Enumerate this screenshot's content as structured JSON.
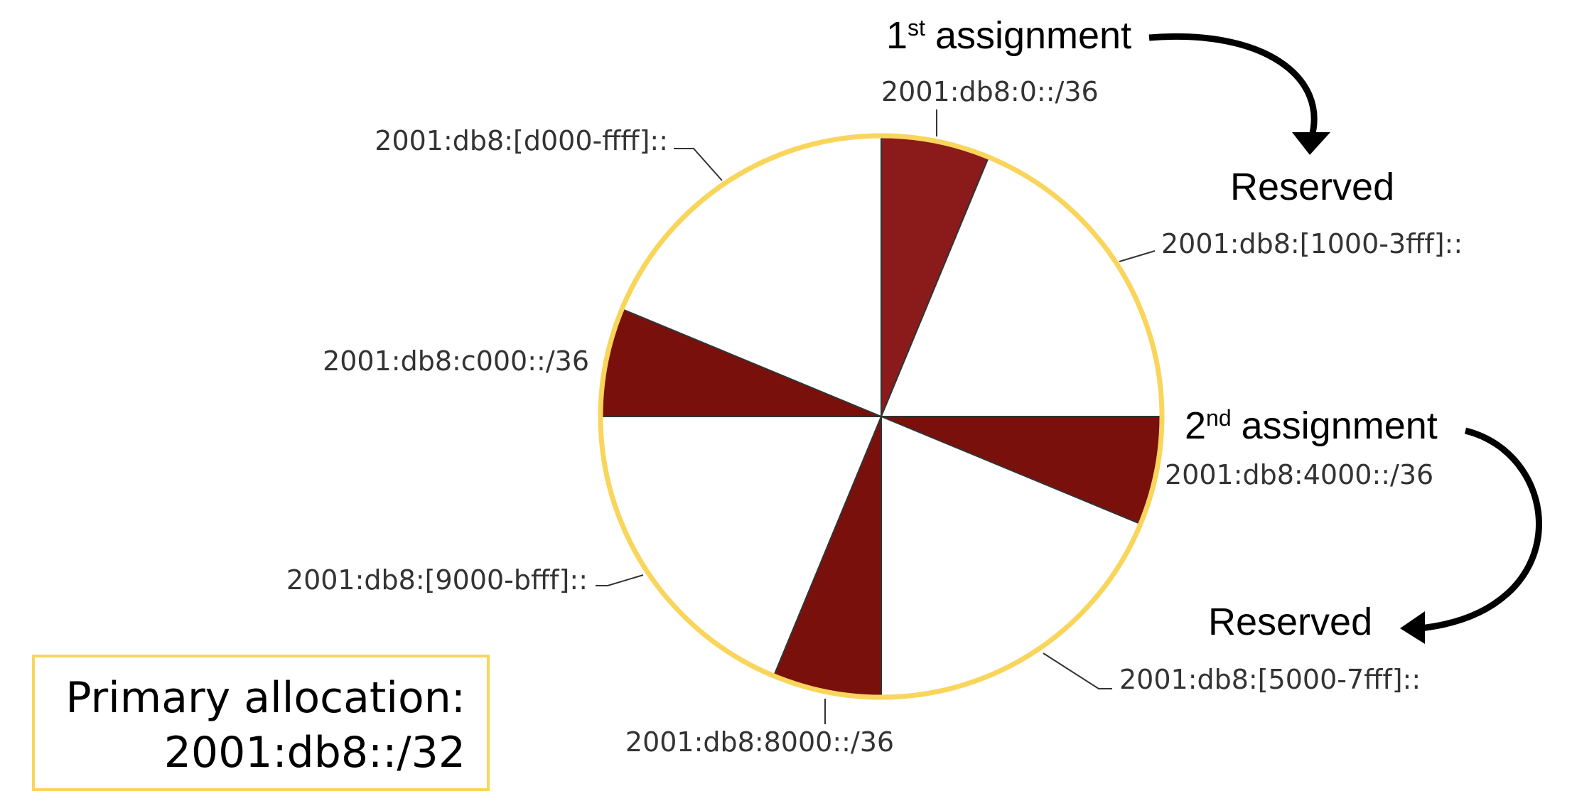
{
  "assignments": [
    {
      "number": "1",
      "suffix": "st",
      "text": "assignment"
    },
    {
      "number": "2",
      "suffix": "nd",
      "text": "assignment"
    }
  ],
  "reserved_labels": [
    "Reserved",
    "Reserved"
  ],
  "blocks": [
    "2001:db8:0::/36",
    "2001:db8:[1000-3fff]::",
    "2001:db8:4000::/36",
    "2001:db8:[5000-7fff]::",
    "2001:db8:8000::/36",
    "2001:db8:[9000-bfff]::",
    "2001:db8:c000::/36",
    "2001:db8:[d000-ffff]::"
  ],
  "primary": {
    "label": "Primary allocation:",
    "prefix": "2001:db8::/32"
  }
}
